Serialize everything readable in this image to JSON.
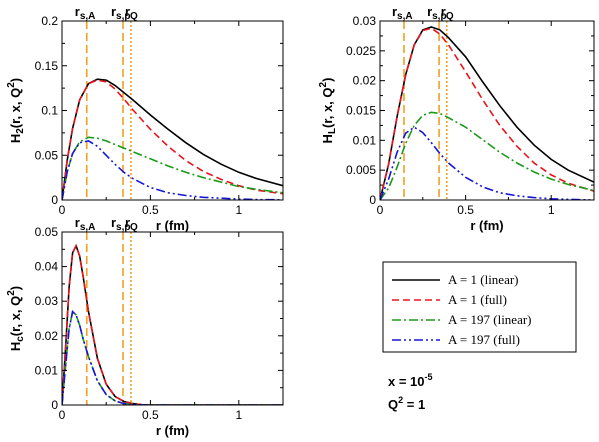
{
  "chart_data": [
    {
      "type": "line",
      "id": "H2",
      "xlabel": "r (fm)",
      "ylabel": {
        "base": "H",
        "sub": "2",
        "args": "(r, x, Q",
        "sup": "2",
        "close": ")"
      },
      "xlim": [
        0,
        1.25
      ],
      "ylim": [
        0,
        0.2
      ],
      "xticks": [
        0,
        0.5,
        1
      ],
      "yticks": [
        0,
        0.05,
        0.1,
        0.15,
        0.2
      ],
      "ytick_labels": [
        "0",
        "0.05",
        "0.1",
        "0.15",
        "0.2"
      ],
      "vlines": [
        {
          "label": "r",
          "sub": "s,A",
          "x": 0.14,
          "style": "dashed"
        },
        {
          "label": "r",
          "sub": "s,p",
          "x": 0.345,
          "style": "dashed"
        },
        {
          "label": "r",
          "sub": "Q",
          "x": 0.39,
          "style": "dotted"
        }
      ],
      "series": [
        {
          "name": "A = 1 (linear)",
          "x": [
            0,
            0.03,
            0.06,
            0.1,
            0.15,
            0.2,
            0.25,
            0.3,
            0.35,
            0.4,
            0.5,
            0.6,
            0.7,
            0.8,
            0.9,
            1.0,
            1.1,
            1.25
          ],
          "y": [
            0,
            0.045,
            0.08,
            0.112,
            0.13,
            0.135,
            0.134,
            0.128,
            0.12,
            0.112,
            0.095,
            0.079,
            0.064,
            0.051,
            0.04,
            0.031,
            0.024,
            0.016
          ]
        },
        {
          "name": "A = 1 (full)",
          "x": [
            0,
            0.03,
            0.06,
            0.1,
            0.15,
            0.2,
            0.25,
            0.3,
            0.35,
            0.4,
            0.5,
            0.6,
            0.7,
            0.8,
            0.9,
            1.0,
            1.1,
            1.25
          ],
          "y": [
            0,
            0.045,
            0.08,
            0.112,
            0.13,
            0.134,
            0.132,
            0.124,
            0.113,
            0.101,
            0.079,
            0.06,
            0.044,
            0.032,
            0.023,
            0.016,
            0.011,
            0.007
          ]
        },
        {
          "name": "A = 197 (linear)",
          "x": [
            0,
            0.03,
            0.06,
            0.1,
            0.15,
            0.2,
            0.25,
            0.3,
            0.35,
            0.4,
            0.5,
            0.6,
            0.7,
            0.8,
            0.9,
            1.0,
            1.1,
            1.25
          ],
          "y": [
            0,
            0.032,
            0.052,
            0.065,
            0.07,
            0.069,
            0.066,
            0.062,
            0.058,
            0.054,
            0.046,
            0.038,
            0.031,
            0.025,
            0.02,
            0.015,
            0.012,
            0.008
          ]
        },
        {
          "name": "A = 197 (full)",
          "x": [
            0,
            0.03,
            0.06,
            0.1,
            0.15,
            0.2,
            0.25,
            0.3,
            0.35,
            0.4,
            0.5,
            0.6,
            0.7,
            0.8,
            0.9,
            1.0,
            1.1,
            1.25
          ],
          "y": [
            0,
            0.032,
            0.052,
            0.064,
            0.066,
            0.06,
            0.05,
            0.04,
            0.031,
            0.024,
            0.014,
            0.008,
            0.005,
            0.003,
            0.002,
            0.001,
            0.0005,
            0.0002
          ]
        }
      ]
    },
    {
      "type": "line",
      "id": "HL",
      "xlabel": "r (fm)",
      "ylabel": {
        "base": "H",
        "sub": "L",
        "args": "(r, x, Q",
        "sup": "2",
        "close": ")"
      },
      "xlim": [
        0,
        1.25
      ],
      "ylim": [
        0,
        0.03
      ],
      "xticks": [
        0,
        0.5,
        1
      ],
      "yticks": [
        0,
        0.005,
        0.01,
        0.015,
        0.02,
        0.025,
        0.03
      ],
      "ytick_labels": [
        "0",
        "0.005",
        "0.01",
        "0.015",
        "0.02",
        "0.025",
        "0.03"
      ],
      "vlines": [
        {
          "label": "r",
          "sub": "s,A",
          "x": 0.14,
          "style": "dashed"
        },
        {
          "label": "r",
          "sub": "s,p",
          "x": 0.345,
          "style": "dashed"
        },
        {
          "label": "r",
          "sub": "Q",
          "x": 0.39,
          "style": "dotted"
        }
      ],
      "series": [
        {
          "name": "A = 1 (linear)",
          "x": [
            0,
            0.05,
            0.1,
            0.15,
            0.2,
            0.25,
            0.3,
            0.35,
            0.4,
            0.5,
            0.6,
            0.7,
            0.8,
            0.9,
            1.0,
            1.1,
            1.25
          ],
          "y": [
            0,
            0.006,
            0.014,
            0.021,
            0.026,
            0.0285,
            0.029,
            0.0285,
            0.0272,
            0.024,
            0.0198,
            0.0158,
            0.0122,
            0.0092,
            0.0068,
            0.005,
            0.003
          ]
        },
        {
          "name": "A = 1 (full)",
          "x": [
            0,
            0.05,
            0.1,
            0.15,
            0.2,
            0.25,
            0.3,
            0.35,
            0.4,
            0.5,
            0.6,
            0.7,
            0.8,
            0.9,
            1.0,
            1.1,
            1.25
          ],
          "y": [
            0,
            0.006,
            0.014,
            0.021,
            0.026,
            0.0284,
            0.0288,
            0.0278,
            0.026,
            0.0215,
            0.0168,
            0.0125,
            0.009,
            0.0062,
            0.0042,
            0.0028,
            0.0015
          ]
        },
        {
          "name": "A = 197 (linear)",
          "x": [
            0,
            0.05,
            0.1,
            0.15,
            0.2,
            0.25,
            0.3,
            0.35,
            0.4,
            0.5,
            0.6,
            0.7,
            0.8,
            0.9,
            1.0,
            1.1,
            1.25
          ],
          "y": [
            0,
            0.002,
            0.0055,
            0.0095,
            0.0125,
            0.0142,
            0.0147,
            0.0145,
            0.0138,
            0.0122,
            0.0101,
            0.008,
            0.0062,
            0.0047,
            0.0035,
            0.0026,
            0.0016
          ]
        },
        {
          "name": "A = 197 (full)",
          "x": [
            0,
            0.05,
            0.1,
            0.15,
            0.2,
            0.25,
            0.3,
            0.35,
            0.4,
            0.5,
            0.6,
            0.7,
            0.8,
            0.9,
            1.0,
            1.1,
            1.25
          ],
          "y": [
            0,
            0.0035,
            0.008,
            0.0112,
            0.0122,
            0.0113,
            0.0096,
            0.0078,
            0.0062,
            0.0038,
            0.0022,
            0.0012,
            0.0007,
            0.0004,
            0.0002,
            0.0001,
            0
          ]
        }
      ]
    },
    {
      "type": "line",
      "id": "Hc",
      "xlabel": "r (fm)",
      "ylabel": {
        "base": "H",
        "sub": "c",
        "args": "(r, x, Q",
        "sup": "2",
        "close": ")"
      },
      "xlim": [
        0,
        1.25
      ],
      "ylim": [
        0,
        0.05
      ],
      "xticks": [
        0,
        0.5,
        1
      ],
      "yticks": [
        0,
        0.01,
        0.02,
        0.03,
        0.04,
        0.05
      ],
      "ytick_labels": [
        "0",
        "0.01",
        "0.02",
        "0.03",
        "0.04",
        "0.05"
      ],
      "vlines": [
        {
          "label": "r",
          "sub": "s,A",
          "x": 0.14,
          "style": "dashed"
        },
        {
          "label": "r",
          "sub": "s,p",
          "x": 0.345,
          "style": "dashed"
        },
        {
          "label": "r",
          "sub": "Q",
          "x": 0.39,
          "style": "dotted"
        }
      ],
      "series": [
        {
          "name": "A = 1 (linear)",
          "x": [
            0,
            0.02,
            0.04,
            0.06,
            0.08,
            0.1,
            0.12,
            0.15,
            0.2,
            0.25,
            0.3,
            0.35,
            0.4,
            0.45,
            0.5,
            0.6,
            0.8,
            1.0,
            1.25
          ],
          "y": [
            0,
            0.016,
            0.034,
            0.044,
            0.046,
            0.043,
            0.037,
            0.027,
            0.0135,
            0.006,
            0.0025,
            0.001,
            0.0004,
            0.0001,
            0,
            0,
            0,
            0,
            0
          ]
        },
        {
          "name": "A = 1 (full)",
          "x": [
            0,
            0.02,
            0.04,
            0.06,
            0.08,
            0.1,
            0.12,
            0.15,
            0.2,
            0.25,
            0.3,
            0.35,
            0.4,
            0.45,
            0.5,
            0.6,
            0.8,
            1.0,
            1.25
          ],
          "y": [
            0,
            0.016,
            0.034,
            0.044,
            0.046,
            0.043,
            0.037,
            0.027,
            0.0135,
            0.006,
            0.0025,
            0.001,
            0.0004,
            0.0001,
            0,
            0,
            0,
            0,
            0
          ]
        },
        {
          "name": "A = 197 (linear)",
          "x": [
            0,
            0.02,
            0.04,
            0.06,
            0.08,
            0.1,
            0.12,
            0.15,
            0.2,
            0.25,
            0.3,
            0.35,
            0.4,
            0.5,
            0.6,
            0.8,
            1.0,
            1.25
          ],
          "y": [
            0,
            0.011,
            0.022,
            0.027,
            0.026,
            0.023,
            0.019,
            0.014,
            0.007,
            0.003,
            0.0012,
            0.0004,
            0.0001,
            0,
            0,
            0,
            0,
            0
          ]
        },
        {
          "name": "A = 197 (full)",
          "x": [
            0,
            0.02,
            0.04,
            0.06,
            0.08,
            0.1,
            0.12,
            0.15,
            0.2,
            0.25,
            0.3,
            0.35,
            0.4,
            0.5,
            0.6,
            0.8,
            1.0,
            1.25
          ],
          "y": [
            0,
            0.011,
            0.022,
            0.027,
            0.026,
            0.023,
            0.019,
            0.014,
            0.007,
            0.003,
            0.0012,
            0.0004,
            0.0001,
            0,
            0,
            0,
            0,
            0
          ]
        }
      ]
    }
  ],
  "series_styles": [
    {
      "color": "#000000",
      "dash": ""
    },
    {
      "color": "#e8141c",
      "dash": "7,4"
    },
    {
      "color": "#1a9a1a",
      "dash": "9,3,2,3"
    },
    {
      "color": "#1515d8",
      "dash": "9,3,2,3,2,3"
    }
  ],
  "vline_color": "#f0a020",
  "legend": {
    "entries": [
      "A = 1 (linear)",
      "A = 1 (full)",
      "A = 197 (linear)",
      "A = 197 (full)"
    ]
  },
  "annotations": {
    "x_text": {
      "base": "x = 10",
      "sup": "-5"
    },
    "q_text": {
      "base": "Q",
      "sup": "2",
      "tail": " = 1"
    }
  }
}
